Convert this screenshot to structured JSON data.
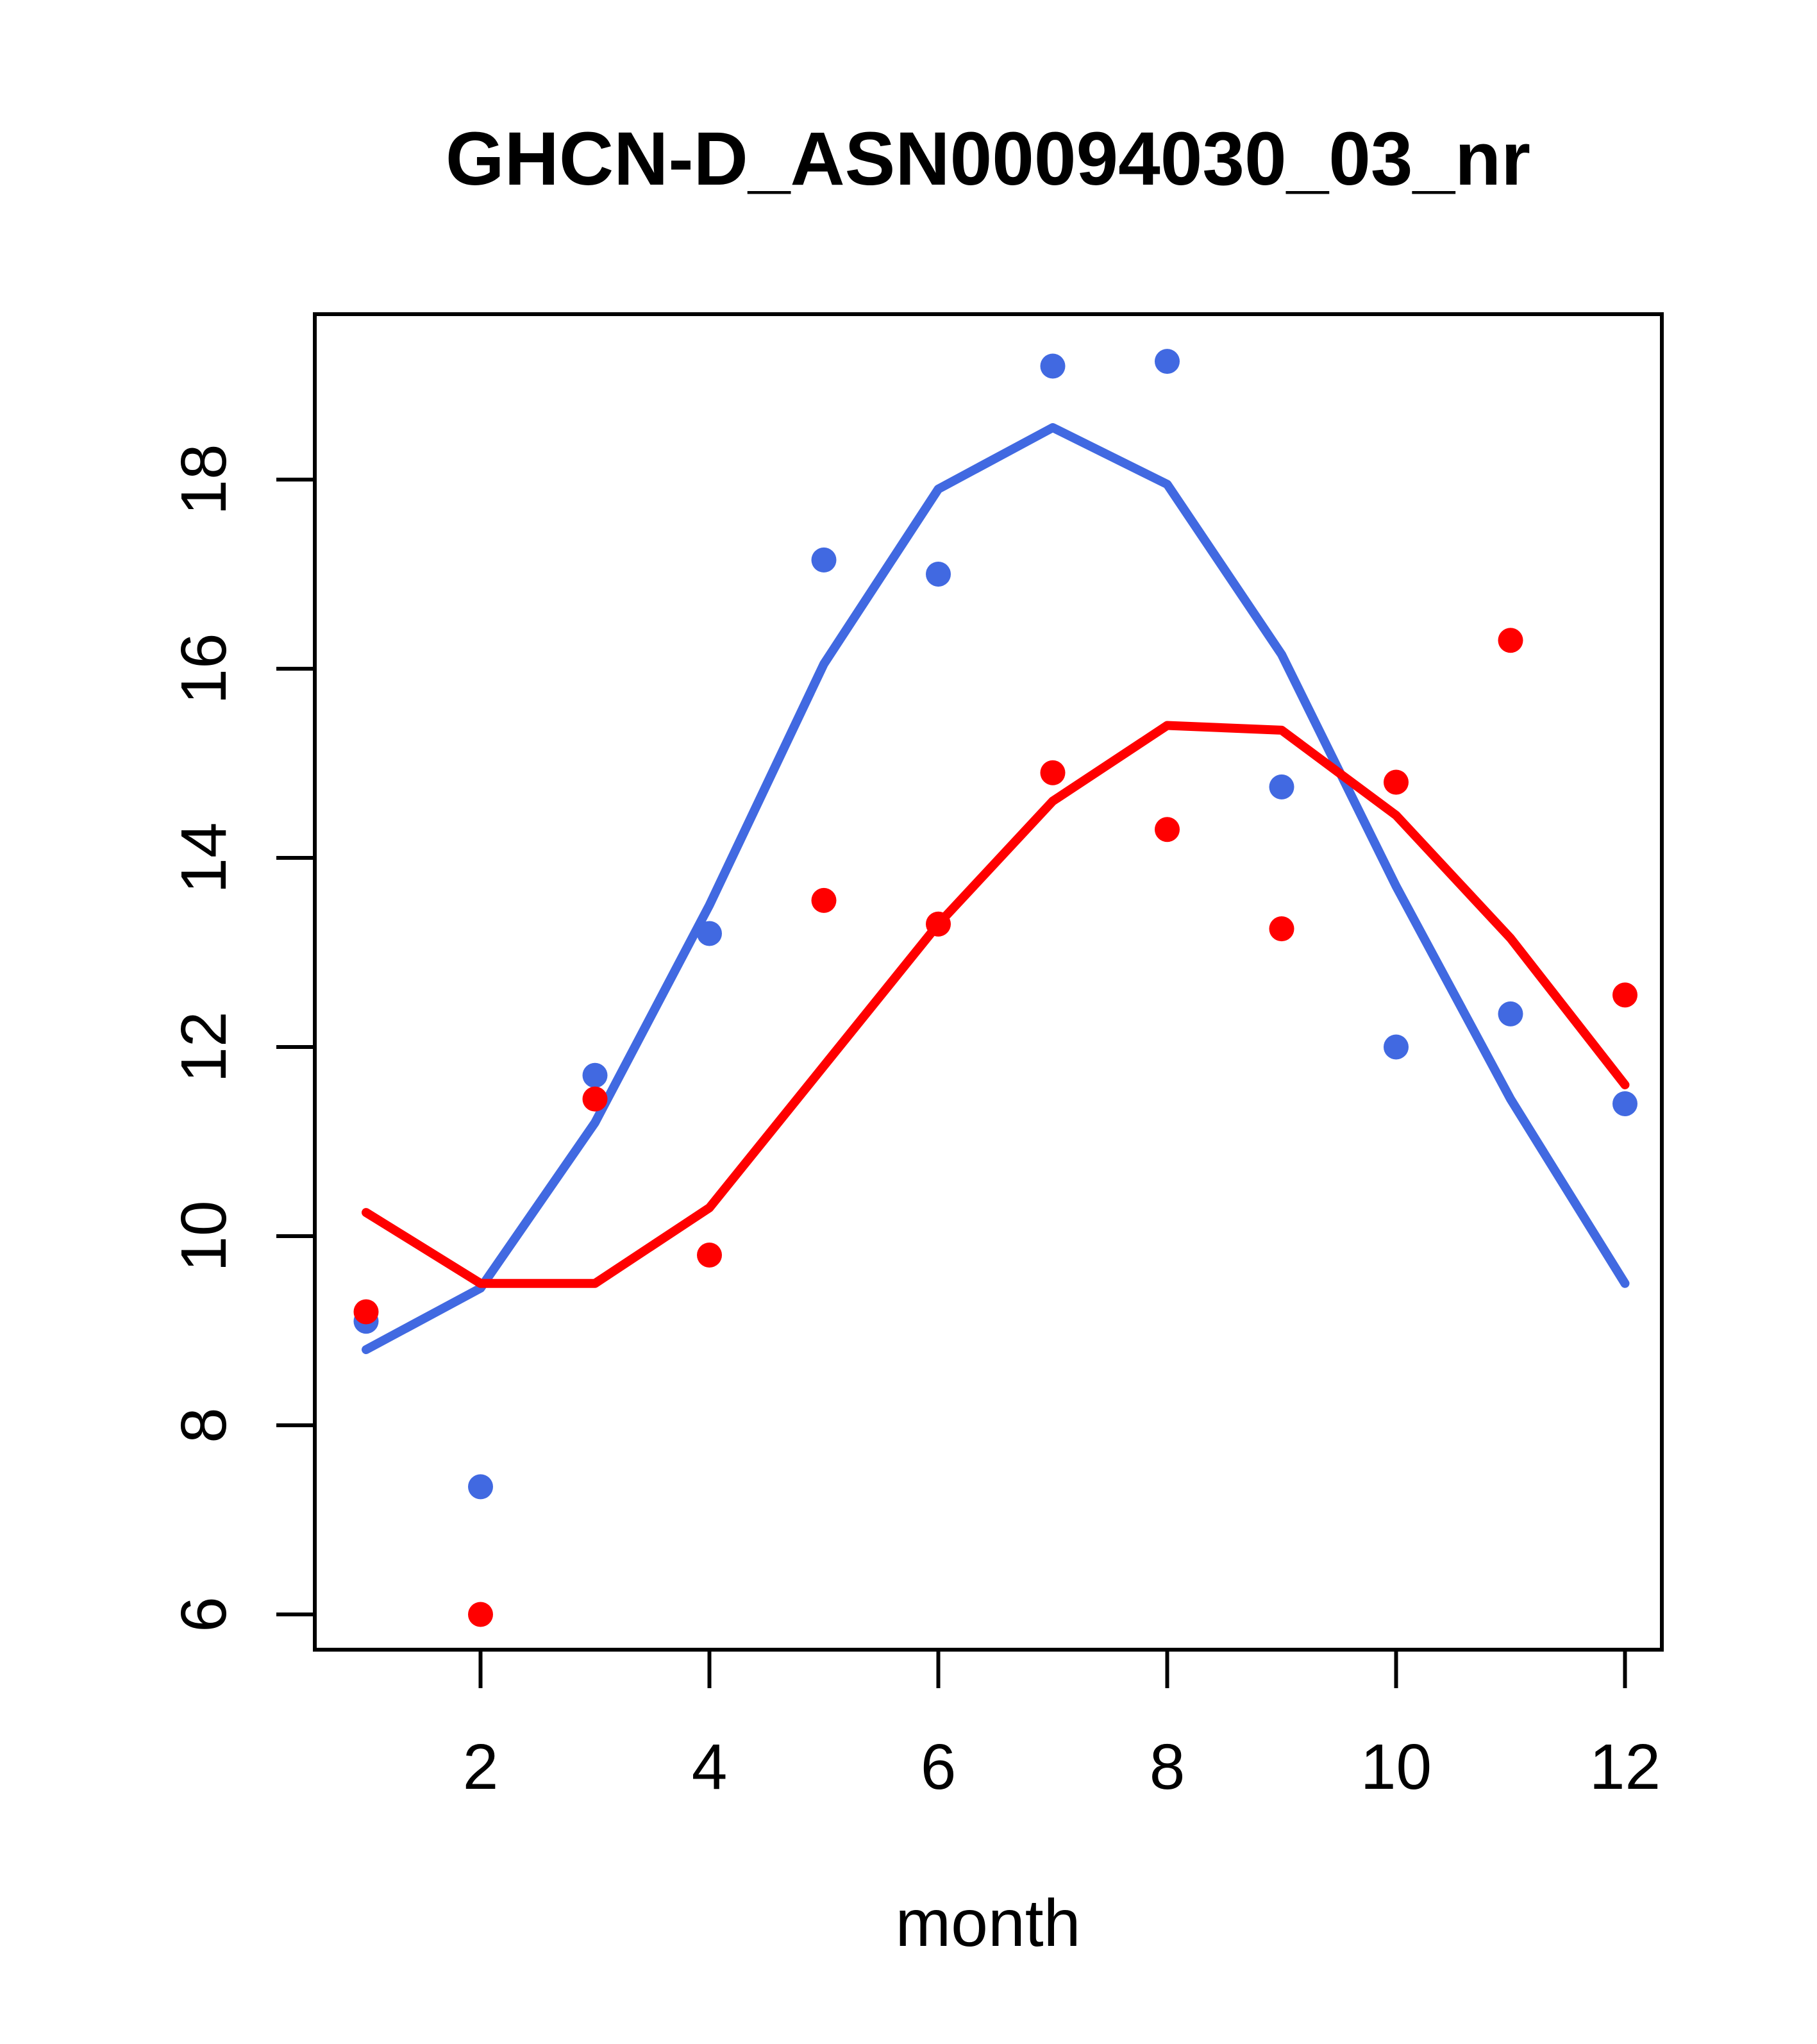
{
  "chart_data": {
    "type": "scatter",
    "title": "GHCN-D_ASN00094030_03_nr",
    "xlabel": "month",
    "ylabel": "",
    "x": [
      1,
      2,
      3,
      4,
      5,
      6,
      7,
      8,
      9,
      10,
      11,
      12
    ],
    "x_ticks": [
      2,
      4,
      6,
      8,
      10,
      12
    ],
    "y_ticks": [
      6,
      8,
      10,
      12,
      14,
      16,
      18
    ],
    "xlim": [
      0.56,
      12.44
    ],
    "ylim": [
      5.4,
      19.8
    ],
    "grid": "off",
    "legend": "none",
    "colors": {
      "blue": "#4169E1",
      "red": "#FF0000",
      "axis": "#000000"
    },
    "series": [
      {
        "name": "blue-points",
        "kind": "points",
        "color": "#4169E1",
        "values": [
          9.1,
          7.35,
          11.7,
          13.2,
          17.15,
          17.0,
          19.2,
          19.25,
          14.75,
          12.0,
          12.35,
          11.4
        ]
      },
      {
        "name": "red-points",
        "kind": "points",
        "color": "#FF0000",
        "values": [
          9.2,
          6.0,
          11.45,
          9.8,
          13.55,
          13.3,
          14.9,
          14.3,
          13.25,
          14.8,
          16.3,
          12.55
        ]
      },
      {
        "name": "blue-smooth-line",
        "kind": "line",
        "color": "#4169E1",
        "values": [
          8.8,
          9.45,
          11.2,
          13.5,
          16.05,
          17.9,
          18.55,
          17.95,
          16.15,
          13.7,
          11.45,
          9.5
        ]
      },
      {
        "name": "red-smooth-line",
        "kind": "line",
        "color": "#FF0000",
        "values": [
          10.25,
          9.5,
          9.5,
          10.3,
          11.8,
          13.3,
          14.6,
          15.4,
          15.35,
          14.45,
          13.15,
          11.6
        ]
      }
    ]
  }
}
